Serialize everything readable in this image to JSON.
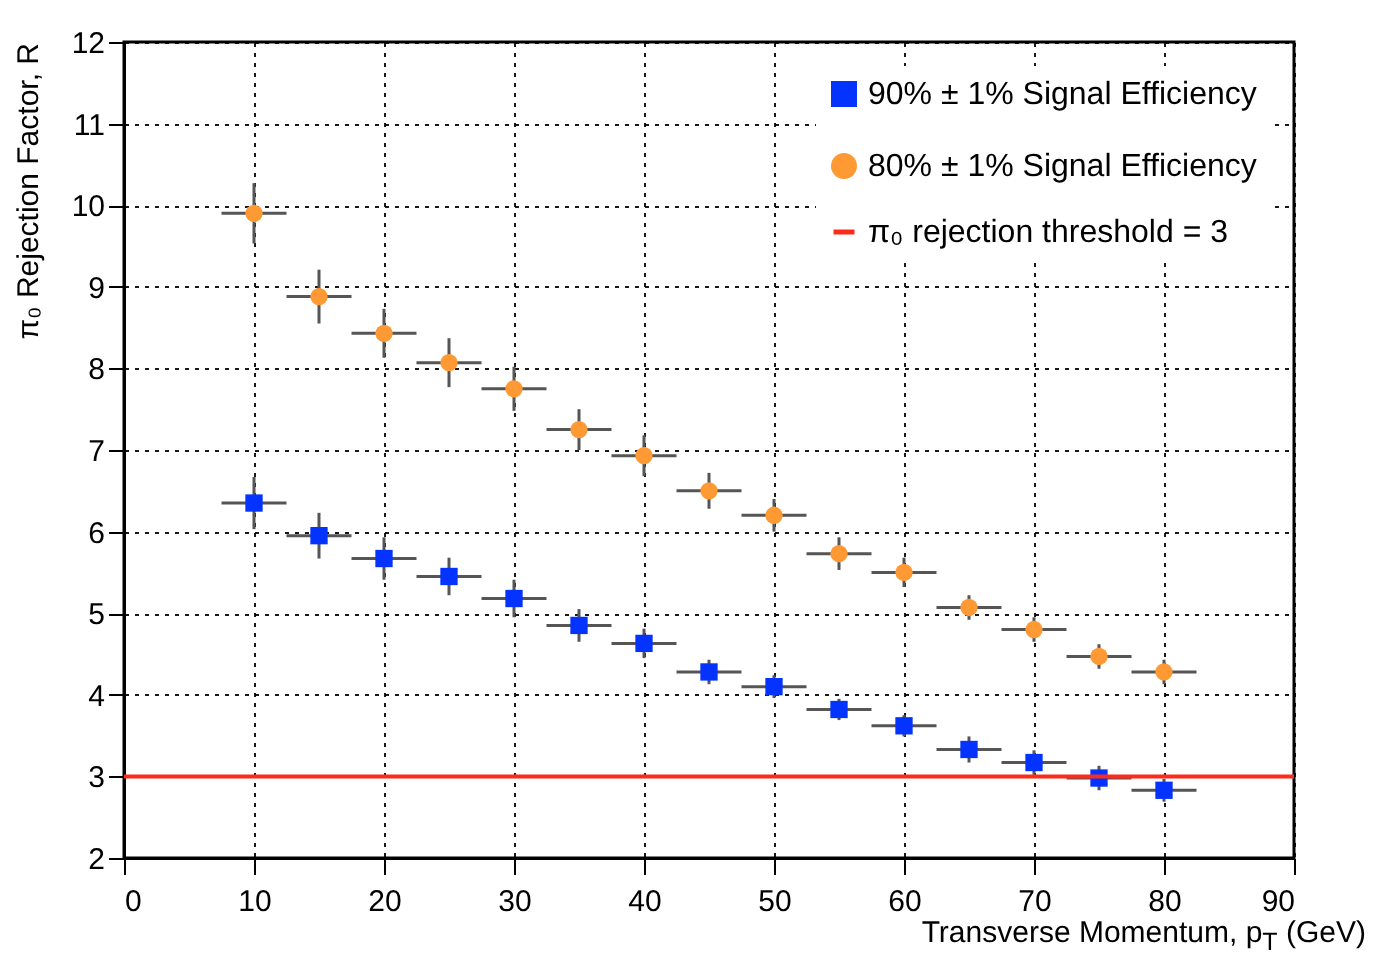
{
  "chart_data": {
    "type": "scatter",
    "xlabel": "Transverse Momentum, p$_{T}$ (GeV)",
    "ylabel": "π₀ Rejection Factor, R",
    "x": [
      10,
      15,
      20,
      25,
      30,
      35,
      40,
      45,
      50,
      55,
      60,
      65,
      70,
      75,
      80
    ],
    "series": [
      {
        "name": "90% ± 1% Signal Efficiency",
        "color": "#0433ff",
        "marker": "square",
        "values": [
          6.35,
          5.95,
          5.67,
          5.45,
          5.18,
          4.85,
          4.63,
          4.28,
          4.1,
          3.82,
          3.62,
          3.33,
          3.17,
          2.98,
          2.83
        ],
        "errors": [
          0.32,
          0.28,
          0.26,
          0.23,
          0.23,
          0.2,
          0.18,
          0.15,
          0.14,
          0.13,
          0.13,
          0.16,
          0.15,
          0.15,
          0.14
        ],
        "xerrors": [
          2.5,
          2.5,
          2.5,
          2.5,
          2.5,
          2.5,
          2.5,
          2.5,
          2.5,
          2.5,
          2.5,
          2.5,
          2.5,
          2.5,
          2.5
        ]
      },
      {
        "name": "80% ± 1% Signal Efficiency",
        "color": "#ff9933",
        "marker": "circle",
        "values": [
          9.9,
          8.88,
          8.43,
          8.07,
          7.75,
          7.25,
          6.93,
          6.5,
          6.2,
          5.73,
          5.5,
          5.07,
          4.8,
          4.47,
          4.28
        ],
        "errors": [
          0.37,
          0.33,
          0.3,
          0.3,
          0.27,
          0.25,
          0.25,
          0.22,
          0.2,
          0.2,
          0.18,
          0.15,
          0.15,
          0.15,
          0.15
        ],
        "xerrors": [
          2.5,
          2.5,
          2.5,
          2.5,
          2.5,
          2.5,
          2.5,
          2.5,
          2.5,
          2.5,
          2.5,
          2.5,
          2.5,
          2.5,
          2.5
        ]
      }
    ],
    "ref_lines": [
      {
        "axis": "y",
        "value": 3,
        "label": "π₀ rejection threshold = 3",
        "color": "#ff2a1a"
      }
    ],
    "xlim": [
      0,
      90
    ],
    "xticks": [
      0,
      10,
      20,
      30,
      40,
      50,
      60,
      70,
      80,
      90
    ],
    "ylim": [
      2,
      12
    ],
    "yticks": [
      2,
      3,
      4,
      5,
      6,
      7,
      8,
      9,
      10,
      11,
      12
    ],
    "grid": true,
    "legend": "top right"
  }
}
